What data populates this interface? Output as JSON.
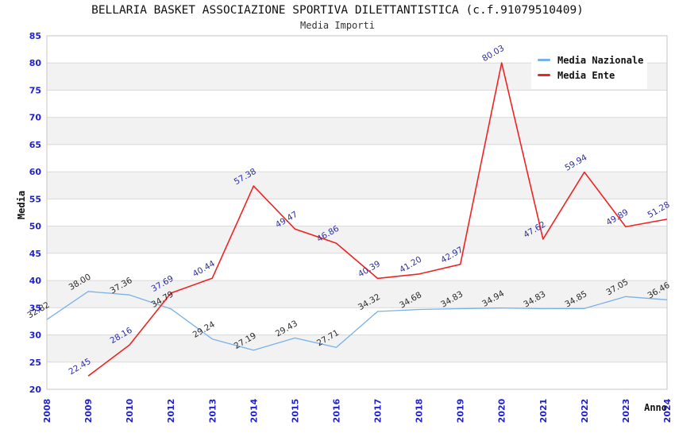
{
  "header": {
    "title": "BELLARIA BASKET ASSOCIAZIONE SPORTIVA DILETTANTISTICA (c.f.91079510409)",
    "subtitle": "Media Importi"
  },
  "chart_data": {
    "type": "line",
    "title": "BELLARIA BASKET ASSOCIAZIONE SPORTIVA DILETTANTISTICA (c.f.91079510409)",
    "subtitle": "Media Importi",
    "xlabel": "Anno",
    "ylabel": "Media",
    "categories": [
      "2008",
      "2009",
      "2010",
      "2012",
      "2013",
      "2014",
      "2015",
      "2016",
      "2017",
      "2018",
      "2019",
      "2020",
      "2021",
      "2022",
      "2023",
      "2024"
    ],
    "series": [
      {
        "name": "Media Nazionale",
        "color": "#79b1e7",
        "label_color": "#2b2b2b",
        "stroke_width": 1.3,
        "values": [
          32.82,
          38.0,
          37.36,
          34.79,
          29.24,
          27.19,
          29.43,
          27.71,
          34.32,
          34.68,
          34.83,
          34.94,
          34.83,
          34.85,
          37.05,
          36.46
        ]
      },
      {
        "name": "Media Ente",
        "color": "#ee2424",
        "label_color": "#2d2da8",
        "stroke_width": 1.6,
        "values": [
          null,
          22.45,
          28.16,
          37.69,
          40.44,
          57.38,
          49.47,
          46.86,
          40.39,
          41.2,
          42.97,
          80.03,
          47.62,
          59.94,
          49.89,
          51.28
        ]
      }
    ],
    "ylim": [
      20,
      85
    ],
    "ytick_step": 5,
    "grid": true,
    "band_fill": "#f2f2f2",
    "gridline_color": "#d9d9d9",
    "border_color": "#c6c6c6",
    "axis_tick_color": "#2222cc",
    "legend_position": "top-right"
  }
}
